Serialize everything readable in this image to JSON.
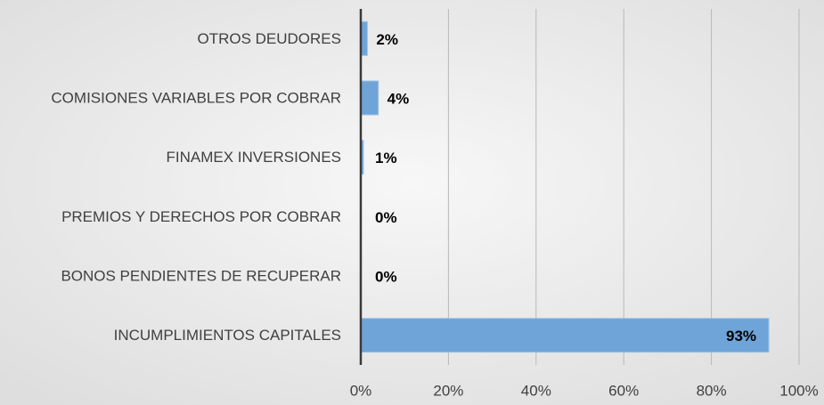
{
  "chart_data": {
    "type": "hbar",
    "categories": [
      "OTROS DEUDORES",
      "COMISIONES VARIABLES POR COBRAR",
      "FINAMEX INVERSIONES",
      "PREMIOS Y DERECHOS POR COBRAR",
      "BONOS PENDIENTES DE RECUPERAR",
      "INCUMPLIMIENTOS CAPITALES"
    ],
    "values": [
      1.5,
      4,
      0.6,
      0,
      0,
      93.1
    ],
    "value_labels": [
      "2%",
      "4%",
      "1%",
      "0%",
      "0%",
      "93%"
    ],
    "color": "#6fa4d8",
    "xlim": [
      0,
      100
    ],
    "xticks": [
      {
        "value": 0,
        "label": "0%"
      },
      {
        "value": 20,
        "label": "20%"
      },
      {
        "value": 40,
        "label": "40%"
      },
      {
        "value": 60,
        "label": "60%"
      },
      {
        "value": 80,
        "label": "80%"
      },
      {
        "value": 100,
        "label": "100%"
      }
    ],
    "grid": true
  }
}
